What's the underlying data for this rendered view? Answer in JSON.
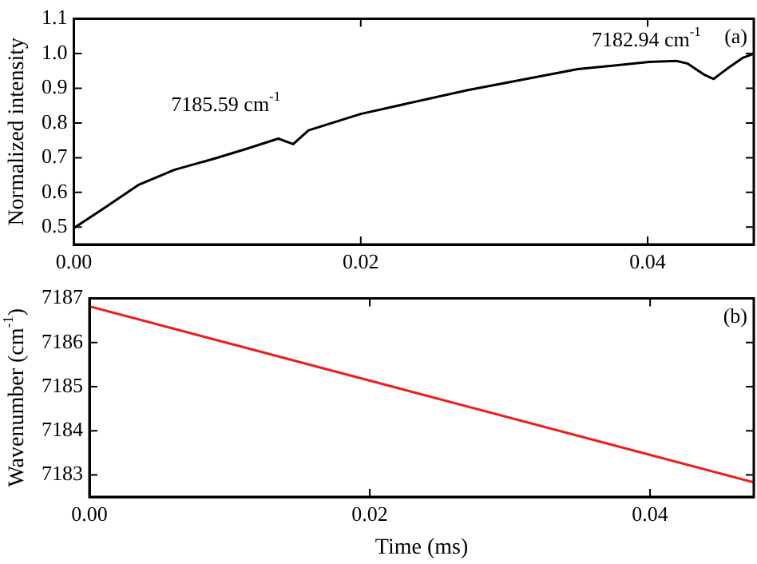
{
  "chart_data": [
    {
      "type": "line",
      "ylabel": "Normalized intensity",
      "color": "#000000",
      "x": [
        0,
        0.0023,
        0.00448,
        0.007,
        0.00985,
        0.012,
        0.01425,
        0.01529,
        0.01636,
        0.02,
        0.02747,
        0.03513,
        0.04011,
        0.042,
        0.0428,
        0.0439,
        0.0446,
        0.0455,
        0.0466,
        0.0474
      ],
      "values": [
        0.497,
        0.56,
        0.621,
        0.665,
        0.698,
        0.725,
        0.755,
        0.739,
        0.779,
        0.826,
        0.895,
        0.955,
        0.976,
        0.979,
        0.971,
        0.94,
        0.927,
        0.955,
        0.987,
        1.0
      ],
      "xlim": [
        0,
        0.0474
      ],
      "ylim": [
        0.45,
        1.1
      ],
      "xticks": [
        {
          "value": 0,
          "label": "0.00"
        },
        {
          "value": 0.02,
          "label": "0.02"
        },
        {
          "value": 0.04,
          "label": "0.04"
        }
      ],
      "yticks": [
        0.5,
        0.6,
        0.7,
        0.8,
        0.9,
        {
          "value": 1,
          "label": "1.0"
        },
        1.1
      ],
      "annotations": [
        "(a)",
        {
          "text": "7185.59 cm$^{-1}$",
          "x": 0.01529,
          "y": 0.739
        },
        {
          "text": "7182.94 cm$^{-1}$",
          "x": 0.0446,
          "y": 0.927
        }
      ],
      "grid": false,
      "legend": false,
      "marker": "none",
      "line_style": "solid"
    },
    {
      "type": "line",
      "xlabel": "Time (ms)",
      "ylabel": "Wavenumber (cm$^{-1}$)",
      "color": "#e8211e",
      "x": [
        0,
        0.0474
      ],
      "values": [
        7186.82,
        7182.83
      ],
      "xlim": [
        0,
        0.0474
      ],
      "ylim": [
        7182.5,
        7187
      ],
      "xticks": [
        {
          "value": 0,
          "label": "0.00"
        },
        {
          "value": 0.02,
          "label": "0.02"
        },
        {
          "value": 0.04,
          "label": "0.04"
        }
      ],
      "yticks": [
        7183,
        7184,
        7185,
        7186,
        7187
      ],
      "annotations": [
        "(b)"
      ],
      "grid": false,
      "legend": false,
      "marker": "none",
      "line_style": "solid"
    }
  ]
}
